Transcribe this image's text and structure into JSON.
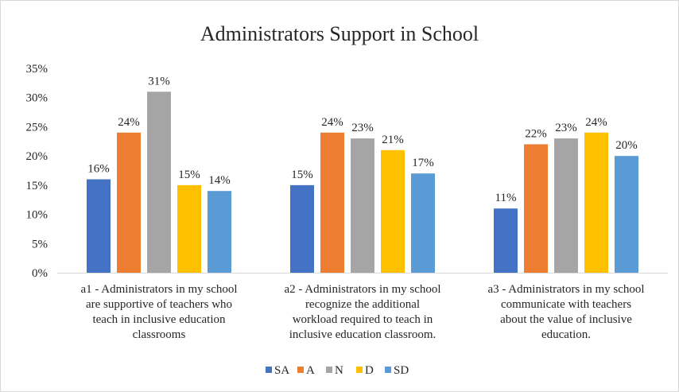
{
  "chart_data": {
    "type": "bar",
    "title": "Administrators Support in School",
    "categories": [
      [
        "a1 - Administrators in my school",
        "are supportive of teachers who",
        "teach in inclusive education",
        "classrooms"
      ],
      [
        "a2 - Administrators in my school",
        "recognize the additional",
        "workload required to teach in",
        "inclusive education classroom."
      ],
      [
        "a3 - Administrators in my school",
        "communicate with teachers",
        "about the value of inclusive",
        "education."
      ]
    ],
    "series": [
      {
        "name": "SA",
        "color": "#4472c4",
        "values": [
          16,
          15,
          11
        ]
      },
      {
        "name": "A",
        "color": "#ed7d31",
        "values": [
          24,
          24,
          22
        ]
      },
      {
        "name": "N",
        "color": "#a5a5a5",
        "values": [
          31,
          23,
          23
        ]
      },
      {
        "name": "D",
        "color": "#ffc000",
        "values": [
          15,
          21,
          24
        ]
      },
      {
        "name": "SD",
        "color": "#5b9bd5",
        "values": [
          14,
          17,
          20
        ]
      }
    ],
    "yticks": [
      "0%",
      "5%",
      "10%",
      "15%",
      "20%",
      "25%",
      "30%",
      "35%"
    ],
    "ylim": [
      0,
      35
    ],
    "value_suffix": "%",
    "grid": false,
    "legend": "bottom"
  }
}
